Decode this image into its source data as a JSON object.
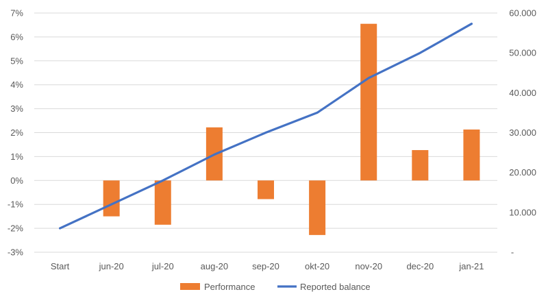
{
  "chart_data": {
    "type": "bar+line",
    "categories": [
      "Start",
      "jun-20",
      "jul-20",
      "aug-20",
      "sep-20",
      "okt-20",
      "nov-20",
      "dec-20",
      "jan-21"
    ],
    "series": [
      {
        "name": "Performance",
        "type": "bar",
        "axis": "left",
        "unit": "%",
        "color": "#ED7D31",
        "values": [
          null,
          -1.5,
          -1.85,
          2.22,
          -0.78,
          -2.28,
          6.55,
          1.27,
          2.13
        ]
      },
      {
        "name": "Reported balance",
        "type": "line",
        "axis": "right",
        "color": "#4472C4",
        "values": [
          6000,
          12000,
          18000,
          24500,
          30000,
          35000,
          43700,
          50000,
          57300
        ]
      }
    ],
    "left_axis": {
      "min": -3,
      "max": 7,
      "step": 1,
      "tick_labels": [
        "-3%",
        "-2%",
        "-1%",
        "0%",
        "1%",
        "2%",
        "3%",
        "4%",
        "5%",
        "6%",
        "7%"
      ]
    },
    "right_axis": {
      "min": 0,
      "max": 60000,
      "step": 10000,
      "tick_labels": [
        "-",
        "10.000",
        "20.000",
        "30.000",
        "40.000",
        "50.000",
        "60.000"
      ]
    },
    "gridlines": true,
    "legend_position": "bottom",
    "legend": [
      "Performance",
      "Reported balance"
    ],
    "title": ""
  }
}
